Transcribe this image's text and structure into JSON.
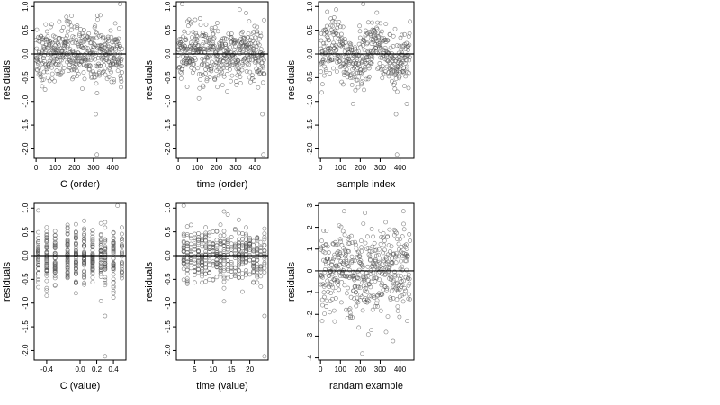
{
  "chart_data": [
    {
      "type": "scatter",
      "xlabel": "C (order)",
      "ylabel": "residuals",
      "xlim": [
        -10,
        470
      ],
      "ylim": [
        -2.2,
        1.1
      ],
      "xticks": [
        0,
        100,
        200,
        300,
        400
      ],
      "xtick_labels": [
        "0",
        "100",
        "200",
        "300",
        "400"
      ],
      "yticks": [
        1.0,
        0.5,
        0.0,
        -0.5,
        -1.0,
        -1.5,
        -2.0
      ],
      "ytick_labels": [
        "1.0",
        "0.5",
        "0.0",
        "-0.5",
        "-1.0",
        "-1.5",
        "-2.0"
      ],
      "hline": 0,
      "x_order": true,
      "n_points": 450,
      "outliers": [
        {
          "x": 312,
          "y": -1.27
        },
        {
          "x": 318,
          "y": -2.12
        },
        {
          "x": 440,
          "y": 1.05
        }
      ],
      "point_color": "#555555"
    },
    {
      "type": "scatter",
      "xlabel": "time (order)",
      "ylabel": "residuals",
      "xlim": [
        -10,
        470
      ],
      "ylim": [
        -2.2,
        1.1
      ],
      "xticks": [
        0,
        100,
        200,
        300,
        400
      ],
      "xtick_labels": [
        "0",
        "100",
        "200",
        "300",
        "400"
      ],
      "yticks": [
        1.0,
        0.5,
        0.0,
        -0.5,
        -1.0,
        -1.5,
        -2.0
      ],
      "ytick_labels": [
        "1.0",
        "0.5",
        "0.0",
        "-0.5",
        "-1.0",
        "-1.5",
        "-2.0"
      ],
      "hline": 0,
      "x_order": true,
      "n_points": 450,
      "outliers": [
        {
          "x": 440,
          "y": -1.27
        },
        {
          "x": 445,
          "y": -2.12
        },
        {
          "x": 20,
          "y": 1.05
        }
      ],
      "point_color": "#555555"
    },
    {
      "type": "scatter",
      "xlabel": "sample index",
      "ylabel": "residuals",
      "xlim": [
        -10,
        470
      ],
      "ylim": [
        -2.2,
        1.1
      ],
      "xticks": [
        0,
        100,
        200,
        300,
        400
      ],
      "xtick_labels": [
        "0",
        "100",
        "200",
        "300",
        "400"
      ],
      "yticks": [
        1.0,
        0.5,
        0.0,
        -0.5,
        -1.0,
        -1.5,
        -2.0
      ],
      "ytick_labels": [
        "1.0",
        "0.5",
        "0.0",
        "-0.5",
        "-1.0",
        "-1.5",
        "-2.0"
      ],
      "hline": 0,
      "x_order": true,
      "n_points": 450,
      "outliers": [
        {
          "x": 380,
          "y": -1.27
        },
        {
          "x": 385,
          "y": -2.12
        },
        {
          "x": 215,
          "y": 1.05
        }
      ],
      "point_color": "#555555"
    },
    {
      "type": "scatter",
      "xlabel": "C (value)",
      "ylabel": "residuals",
      "xlim": [
        -0.55,
        0.55
      ],
      "ylim": [
        -2.2,
        1.1
      ],
      "xticks": [
        -0.4,
        0.0,
        0.2,
        0.4
      ],
      "xtick_labels": [
        "-0.4",
        "0.0",
        "0.2",
        "0.4"
      ],
      "yticks": [
        1.0,
        0.5,
        0.0,
        -0.5,
        -1.0,
        -1.5,
        -2.0
      ],
      "ytick_labels": [
        "1.0",
        "0.5",
        "0.0",
        "-0.5",
        "-1.0",
        "-1.5",
        "-2.0"
      ],
      "hline": 0,
      "x_levels": [
        -0.5,
        -0.4,
        -0.3,
        -0.15,
        -0.05,
        0.05,
        0.15,
        0.25,
        0.3,
        0.4,
        0.5
      ],
      "n_points": 450,
      "outliers": [
        {
          "x": 0.3,
          "y": -1.27
        },
        {
          "x": 0.3,
          "y": -2.12
        },
        {
          "x": -0.5,
          "y": 0.95
        },
        {
          "x": 0.45,
          "y": 1.05
        }
      ],
      "point_color": "#555555"
    },
    {
      "type": "scatter",
      "xlabel": "time (value)",
      "ylabel": "residuals",
      "xlim": [
        0,
        25
      ],
      "ylim": [
        -2.2,
        1.1
      ],
      "xticks": [
        5,
        10,
        15,
        20
      ],
      "xtick_labels": [
        "5",
        "10",
        "15",
        "20"
      ],
      "yticks": [
        1.0,
        0.5,
        0.0,
        -0.5,
        -1.0,
        -1.5,
        -2.0
      ],
      "ytick_labels": [
        "1.0",
        "0.5",
        "0.0",
        "-0.5",
        "-1.0",
        "-1.5",
        "-2.0"
      ],
      "hline": 0,
      "x_levels": [
        2,
        3,
        4,
        5,
        6,
        7,
        8,
        9,
        10,
        11,
        12,
        13,
        14,
        15,
        16,
        17,
        18,
        19,
        20,
        21,
        22,
        23,
        24
      ],
      "n_points": 450,
      "outliers": [
        {
          "x": 24,
          "y": -1.27
        },
        {
          "x": 24,
          "y": -2.12
        },
        {
          "x": 2,
          "y": 1.05
        }
      ],
      "point_color": "#555555"
    },
    {
      "type": "scatter",
      "xlabel": "randam example",
      "ylabel": "residuals",
      "xlim": [
        -10,
        470
      ],
      "ylim": [
        -4.1,
        3.1
      ],
      "xticks": [
        0,
        100,
        200,
        300,
        400
      ],
      "xtick_labels": [
        "0",
        "100",
        "200",
        "300",
        "400"
      ],
      "yticks": [
        3,
        2,
        1,
        0,
        -1,
        -2,
        -3,
        -4
      ],
      "ytick_labels": [
        "3",
        "2",
        "1",
        "0",
        "-1",
        "-2",
        "-3",
        "-4"
      ],
      "hline": 0,
      "x_order": true,
      "n_points": 450,
      "outliers": [
        {
          "x": 210,
          "y": -3.8
        }
      ],
      "point_color": "#555555"
    }
  ]
}
